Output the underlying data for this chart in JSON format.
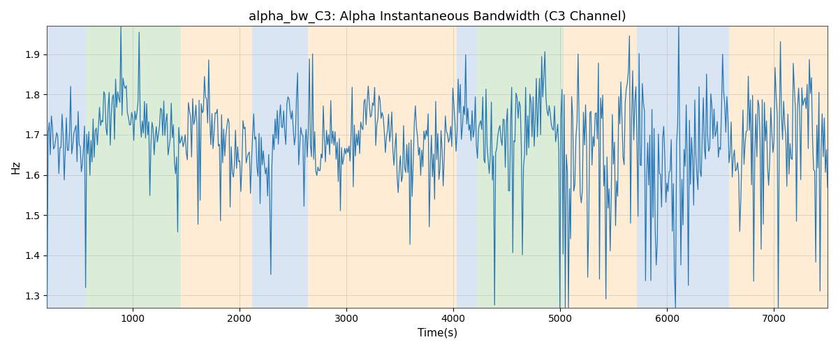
{
  "title": "alpha_bw_C3: Alpha Instantaneous Bandwidth (C3 Channel)",
  "xlabel": "Time(s)",
  "ylabel": "Hz",
  "xlim": [
    200,
    7500
  ],
  "ylim": [
    1.27,
    1.97
  ],
  "line_color": "#2878b5",
  "line_width": 0.9,
  "bands": [
    {
      "xmin": 200,
      "xmax": 560,
      "color": "#aec6e8",
      "alpha": 0.45
    },
    {
      "xmin": 560,
      "xmax": 1450,
      "color": "#b2d8a8",
      "alpha": 0.45
    },
    {
      "xmin": 1450,
      "xmax": 2120,
      "color": "#fdd9a0",
      "alpha": 0.45
    },
    {
      "xmin": 2120,
      "xmax": 2640,
      "color": "#aec6e8",
      "alpha": 0.45
    },
    {
      "xmin": 2640,
      "xmax": 4030,
      "color": "#fdd9a0",
      "alpha": 0.45
    },
    {
      "xmin": 4030,
      "xmax": 4220,
      "color": "#aec6e8",
      "alpha": 0.45
    },
    {
      "xmin": 4220,
      "xmax": 5030,
      "color": "#b2d8a8",
      "alpha": 0.45
    },
    {
      "xmin": 5030,
      "xmax": 5720,
      "color": "#fdd9a0",
      "alpha": 0.45
    },
    {
      "xmin": 5720,
      "xmax": 6580,
      "color": "#aec6e8",
      "alpha": 0.45
    },
    {
      "xmin": 6580,
      "xmax": 7500,
      "color": "#fdd9a0",
      "alpha": 0.45
    }
  ],
  "grid_color": "#b0b0b0",
  "grid_alpha": 0.6,
  "yticks": [
    1.3,
    1.4,
    1.5,
    1.6,
    1.7,
    1.8,
    1.9
  ],
  "xticks": [
    1000,
    2000,
    3000,
    4000,
    5000,
    6000,
    7000
  ],
  "figsize": [
    12.0,
    5.0
  ],
  "dpi": 100,
  "random_seed": 12345,
  "n_points": 730
}
